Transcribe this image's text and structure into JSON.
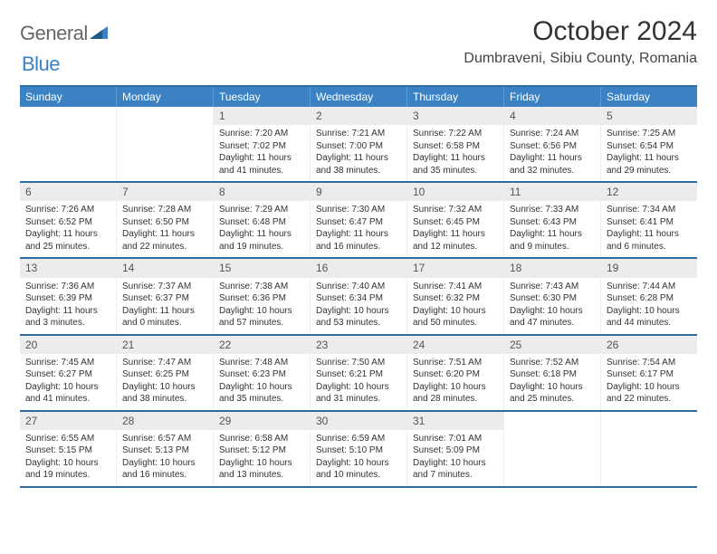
{
  "brand": {
    "word1": "General",
    "word2": "Blue"
  },
  "title": "October 2024",
  "location": "Dumbraveni, Sibiu County, Romania",
  "colors": {
    "header_bg": "#3b82c4",
    "border": "#2e6da4",
    "daynum_bg": "#ececec",
    "text": "#333333"
  },
  "daysOfWeek": [
    "Sunday",
    "Monday",
    "Tuesday",
    "Wednesday",
    "Thursday",
    "Friday",
    "Saturday"
  ],
  "weeks": [
    [
      {
        "n": "",
        "sr": "",
        "ss": "",
        "dl": "",
        "empty": true
      },
      {
        "n": "",
        "sr": "",
        "ss": "",
        "dl": "",
        "empty": true
      },
      {
        "n": "1",
        "sr": "Sunrise: 7:20 AM",
        "ss": "Sunset: 7:02 PM",
        "dl": "Daylight: 11 hours and 41 minutes."
      },
      {
        "n": "2",
        "sr": "Sunrise: 7:21 AM",
        "ss": "Sunset: 7:00 PM",
        "dl": "Daylight: 11 hours and 38 minutes."
      },
      {
        "n": "3",
        "sr": "Sunrise: 7:22 AM",
        "ss": "Sunset: 6:58 PM",
        "dl": "Daylight: 11 hours and 35 minutes."
      },
      {
        "n": "4",
        "sr": "Sunrise: 7:24 AM",
        "ss": "Sunset: 6:56 PM",
        "dl": "Daylight: 11 hours and 32 minutes."
      },
      {
        "n": "5",
        "sr": "Sunrise: 7:25 AM",
        "ss": "Sunset: 6:54 PM",
        "dl": "Daylight: 11 hours and 29 minutes."
      }
    ],
    [
      {
        "n": "6",
        "sr": "Sunrise: 7:26 AM",
        "ss": "Sunset: 6:52 PM",
        "dl": "Daylight: 11 hours and 25 minutes."
      },
      {
        "n": "7",
        "sr": "Sunrise: 7:28 AM",
        "ss": "Sunset: 6:50 PM",
        "dl": "Daylight: 11 hours and 22 minutes."
      },
      {
        "n": "8",
        "sr": "Sunrise: 7:29 AM",
        "ss": "Sunset: 6:48 PM",
        "dl": "Daylight: 11 hours and 19 minutes."
      },
      {
        "n": "9",
        "sr": "Sunrise: 7:30 AM",
        "ss": "Sunset: 6:47 PM",
        "dl": "Daylight: 11 hours and 16 minutes."
      },
      {
        "n": "10",
        "sr": "Sunrise: 7:32 AM",
        "ss": "Sunset: 6:45 PM",
        "dl": "Daylight: 11 hours and 12 minutes."
      },
      {
        "n": "11",
        "sr": "Sunrise: 7:33 AM",
        "ss": "Sunset: 6:43 PM",
        "dl": "Daylight: 11 hours and 9 minutes."
      },
      {
        "n": "12",
        "sr": "Sunrise: 7:34 AM",
        "ss": "Sunset: 6:41 PM",
        "dl": "Daylight: 11 hours and 6 minutes."
      }
    ],
    [
      {
        "n": "13",
        "sr": "Sunrise: 7:36 AM",
        "ss": "Sunset: 6:39 PM",
        "dl": "Daylight: 11 hours and 3 minutes."
      },
      {
        "n": "14",
        "sr": "Sunrise: 7:37 AM",
        "ss": "Sunset: 6:37 PM",
        "dl": "Daylight: 11 hours and 0 minutes."
      },
      {
        "n": "15",
        "sr": "Sunrise: 7:38 AM",
        "ss": "Sunset: 6:36 PM",
        "dl": "Daylight: 10 hours and 57 minutes."
      },
      {
        "n": "16",
        "sr": "Sunrise: 7:40 AM",
        "ss": "Sunset: 6:34 PM",
        "dl": "Daylight: 10 hours and 53 minutes."
      },
      {
        "n": "17",
        "sr": "Sunrise: 7:41 AM",
        "ss": "Sunset: 6:32 PM",
        "dl": "Daylight: 10 hours and 50 minutes."
      },
      {
        "n": "18",
        "sr": "Sunrise: 7:43 AM",
        "ss": "Sunset: 6:30 PM",
        "dl": "Daylight: 10 hours and 47 minutes."
      },
      {
        "n": "19",
        "sr": "Sunrise: 7:44 AM",
        "ss": "Sunset: 6:28 PM",
        "dl": "Daylight: 10 hours and 44 minutes."
      }
    ],
    [
      {
        "n": "20",
        "sr": "Sunrise: 7:45 AM",
        "ss": "Sunset: 6:27 PM",
        "dl": "Daylight: 10 hours and 41 minutes."
      },
      {
        "n": "21",
        "sr": "Sunrise: 7:47 AM",
        "ss": "Sunset: 6:25 PM",
        "dl": "Daylight: 10 hours and 38 minutes."
      },
      {
        "n": "22",
        "sr": "Sunrise: 7:48 AM",
        "ss": "Sunset: 6:23 PM",
        "dl": "Daylight: 10 hours and 35 minutes."
      },
      {
        "n": "23",
        "sr": "Sunrise: 7:50 AM",
        "ss": "Sunset: 6:21 PM",
        "dl": "Daylight: 10 hours and 31 minutes."
      },
      {
        "n": "24",
        "sr": "Sunrise: 7:51 AM",
        "ss": "Sunset: 6:20 PM",
        "dl": "Daylight: 10 hours and 28 minutes."
      },
      {
        "n": "25",
        "sr": "Sunrise: 7:52 AM",
        "ss": "Sunset: 6:18 PM",
        "dl": "Daylight: 10 hours and 25 minutes."
      },
      {
        "n": "26",
        "sr": "Sunrise: 7:54 AM",
        "ss": "Sunset: 6:17 PM",
        "dl": "Daylight: 10 hours and 22 minutes."
      }
    ],
    [
      {
        "n": "27",
        "sr": "Sunrise: 6:55 AM",
        "ss": "Sunset: 5:15 PM",
        "dl": "Daylight: 10 hours and 19 minutes."
      },
      {
        "n": "28",
        "sr": "Sunrise: 6:57 AM",
        "ss": "Sunset: 5:13 PM",
        "dl": "Daylight: 10 hours and 16 minutes."
      },
      {
        "n": "29",
        "sr": "Sunrise: 6:58 AM",
        "ss": "Sunset: 5:12 PM",
        "dl": "Daylight: 10 hours and 13 minutes."
      },
      {
        "n": "30",
        "sr": "Sunrise: 6:59 AM",
        "ss": "Sunset: 5:10 PM",
        "dl": "Daylight: 10 hours and 10 minutes."
      },
      {
        "n": "31",
        "sr": "Sunrise: 7:01 AM",
        "ss": "Sunset: 5:09 PM",
        "dl": "Daylight: 10 hours and 7 minutes."
      },
      {
        "n": "",
        "sr": "",
        "ss": "",
        "dl": "",
        "empty": true
      },
      {
        "n": "",
        "sr": "",
        "ss": "",
        "dl": "",
        "empty": true
      }
    ]
  ]
}
